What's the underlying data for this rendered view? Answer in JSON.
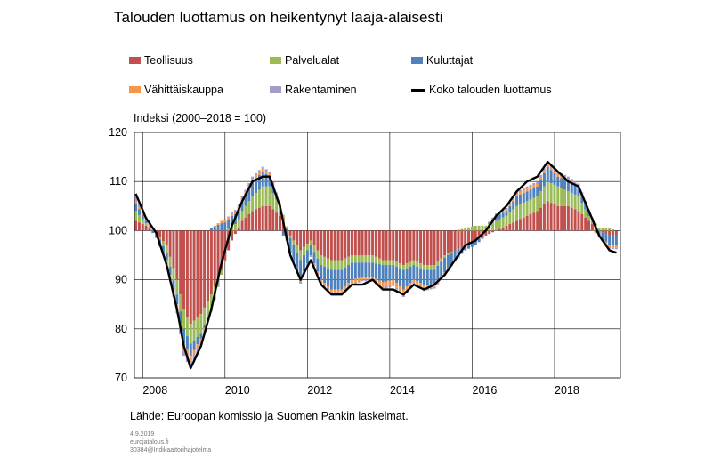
{
  "header": {
    "title": "Talouden luottamus on heikentynyt laaja-alaisesti"
  },
  "legend": {
    "items": [
      {
        "label": "Teollisuus",
        "color": "#C0504D",
        "kind": "swatch"
      },
      {
        "label": "Palvelualat",
        "color": "#9BBB59",
        "kind": "swatch"
      },
      {
        "label": "Kuluttajat",
        "color": "#4F81BD",
        "kind": "swatch"
      },
      {
        "label": "Vähittäiskauppa",
        "color": "#F79646",
        "kind": "swatch"
      },
      {
        "label": "Rakentaminen",
        "color": "#A59BC8",
        "kind": "swatch"
      },
      {
        "label": "Koko talouden luottamus",
        "color": "#000000",
        "kind": "line"
      }
    ]
  },
  "axis": {
    "y_label": "Indeksi (2000–2018 = 100)"
  },
  "footer": {
    "source": "Lähde: Euroopan komissio ja Suomen Pankin laskelmat.",
    "date": "4.9.2019",
    "site": "eurojatalous.fi",
    "code": "30384@Indikaattorihajotelma"
  },
  "chart_data": {
    "type": "bar",
    "subtype": "stacked bar with line",
    "baseline": 100,
    "ylim": [
      70,
      120
    ],
    "yticks": [
      70,
      80,
      90,
      100,
      110,
      120
    ],
    "xlim": [
      2007.8,
      2019.6
    ],
    "xticks": [
      2008,
      2010,
      2012,
      2014,
      2016,
      2018
    ],
    "grid": true,
    "legend_position": "top",
    "series_names": [
      "Teollisuus",
      "Palvelualat",
      "Kuluttajat",
      "Vähittäiskauppa",
      "Rakentaminen"
    ],
    "line_name": "Koko talouden luottamus",
    "anchors": {
      "months": [
        "2007-11",
        "2008-02",
        "2008-05",
        "2008-08",
        "2008-11",
        "2009-01",
        "2009-03",
        "2009-06",
        "2009-09",
        "2009-12",
        "2010-03",
        "2010-06",
        "2010-09",
        "2010-12",
        "2011-02",
        "2011-05",
        "2011-08",
        "2011-11",
        "2012-02",
        "2012-05",
        "2012-08",
        "2012-11",
        "2013-02",
        "2013-05",
        "2013-08",
        "2013-11",
        "2014-02",
        "2014-05",
        "2014-08",
        "2014-11",
        "2015-02",
        "2015-05",
        "2015-08",
        "2015-11",
        "2016-02",
        "2016-05",
        "2016-08",
        "2016-11",
        "2017-02",
        "2017-05",
        "2017-08",
        "2017-11",
        "2018-02",
        "2018-05",
        "2018-08",
        "2018-11",
        "2019-02",
        "2019-05",
        "2019-07"
      ],
      "Teollisuus": [
        2,
        1,
        -0.5,
        -3,
        -10,
        -16,
        -19,
        -17,
        -13,
        -8,
        -2,
        2,
        4,
        5,
        5,
        3,
        -1,
        -4,
        -2,
        -5,
        -6,
        -6,
        -5,
        -5,
        -5,
        -6,
        -6,
        -7,
        -6,
        -7,
        -7,
        -5,
        -4,
        -3,
        -2,
        -1,
        0,
        1,
        2,
        3,
        4,
        6,
        5,
        5,
        4,
        2,
        0,
        -1,
        -1
      ],
      "Palvelualat": [
        2,
        0.5,
        0,
        -1.5,
        -3,
        -4,
        -4,
        -4,
        -3,
        -1,
        1,
        2,
        3,
        4,
        4,
        2,
        -0.5,
        -2,
        -1,
        -2,
        -2,
        -2,
        -1.5,
        -1.5,
        -1.5,
        -1,
        -1,
        -1,
        -1,
        -1,
        -1,
        -0.5,
        0,
        0.5,
        1,
        1,
        2,
        2,
        3,
        3,
        3,
        4,
        4,
        3,
        3,
        1,
        0.5,
        0.5,
        0
      ],
      "Kuluttajat": [
        1.5,
        0.5,
        -1,
        -1.5,
        -2,
        -3,
        -2.5,
        -1,
        0.5,
        1.5,
        2,
        2,
        3,
        3,
        2,
        0,
        -3,
        -4,
        -2,
        -3,
        -4,
        -4,
        -3.5,
        -3,
        -3,
        -3.5,
        -3,
        -4,
        -3,
        -3,
        -3,
        -3,
        -2,
        -1,
        -1,
        0,
        1,
        1,
        2,
        2,
        2,
        3,
        2,
        2,
        2,
        1,
        -1,
        -2,
        -2
      ],
      "Vähittäiskauppa": [
        0.5,
        0.3,
        0,
        -0.3,
        -0.8,
        -1,
        -1,
        -0.5,
        0,
        0.5,
        0.5,
        0.5,
        0.5,
        0.5,
        0.5,
        0.3,
        0,
        -0.3,
        -0.2,
        -0.5,
        -0.5,
        -0.5,
        -0.8,
        -0.5,
        -0.5,
        -1,
        -1,
        -1,
        -0.5,
        -1,
        -0.5,
        -0.5,
        -0.3,
        0,
        0,
        0,
        0.3,
        0.3,
        0.5,
        0.5,
        0.5,
        0.5,
        0.5,
        0.5,
        0.3,
        0,
        -0.3,
        -0.5,
        -0.5
      ],
      "Rakentaminen": [
        1,
        0.5,
        0,
        -0.5,
        -1,
        -1.5,
        -1.5,
        -1,
        -0.5,
        0,
        0.3,
        0.5,
        0.5,
        0.5,
        0.5,
        0.3,
        0,
        -0.5,
        -0.2,
        -0.3,
        -0.3,
        -0.3,
        -0.3,
        -0.3,
        -0.3,
        -0.5,
        -0.3,
        -0.5,
        -0.3,
        -0.3,
        -0.3,
        -0.2,
        0,
        0,
        0,
        0,
        0.2,
        0.3,
        0.5,
        0.5,
        0.5,
        0.5,
        0.5,
        0.5,
        0.3,
        0.2,
        0,
        -0.2,
        -0.3
      ],
      "Koko talouden luottamus": [
        107.5,
        102.5,
        99.5,
        93,
        84,
        76.5,
        72,
        76.5,
        84,
        93.5,
        101,
        106,
        110,
        111,
        111,
        105,
        95,
        90,
        94,
        89,
        87,
        87,
        89,
        89,
        90,
        88,
        88,
        87,
        89,
        88,
        89,
        91,
        94,
        97,
        98,
        100,
        103,
        105,
        108,
        110,
        111,
        114,
        112,
        110,
        109,
        104,
        99,
        96,
        95.5
      ]
    }
  }
}
